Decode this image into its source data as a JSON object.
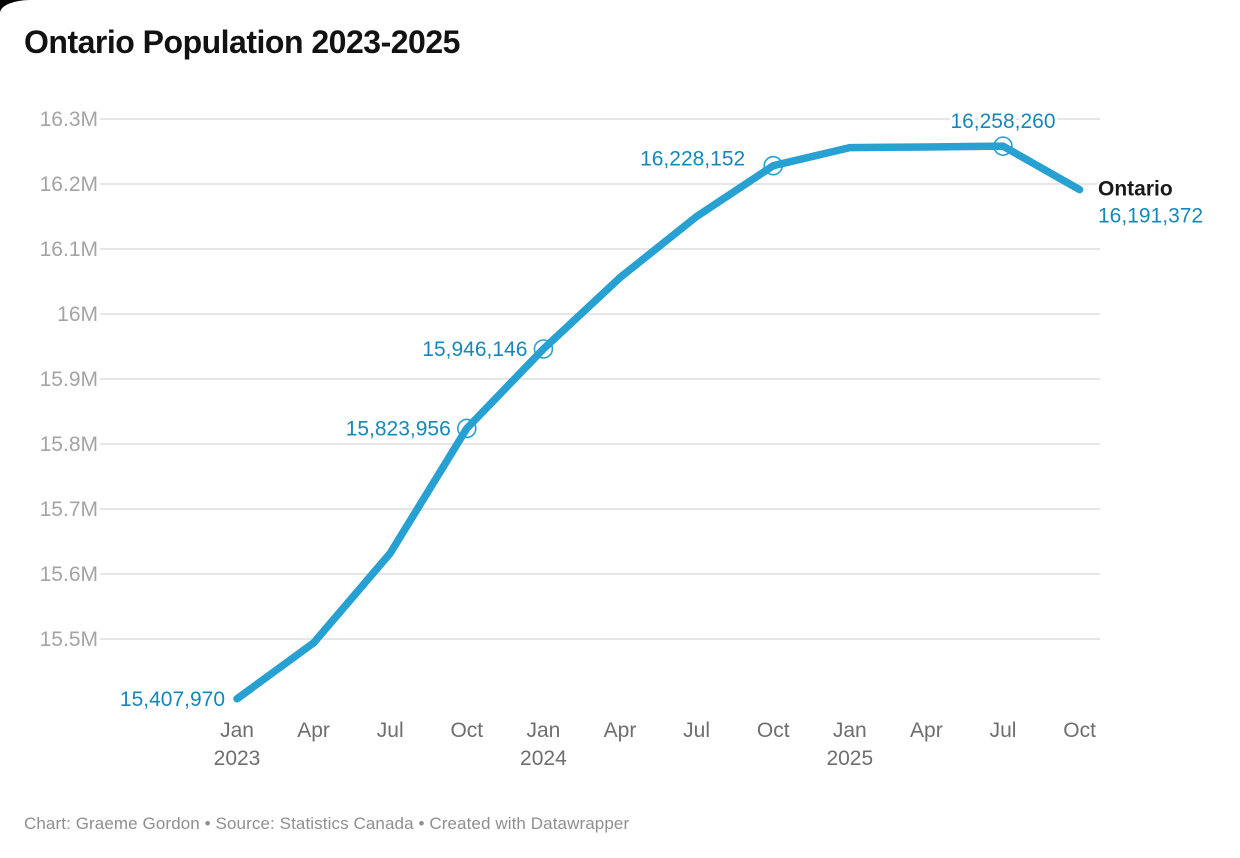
{
  "title": "Ontario Population 2023-2025",
  "footer": "Chart: Graeme Gordon • Source: Statistics Canada • Created with Datawrapper",
  "colors": {
    "line": "#27a0d2",
    "value_label": "#1787b9",
    "series_label": "#1a1a1a",
    "grid": "#e2e2e2",
    "y_tick_text": "#a4a4a4",
    "x_tick_text": "#6e6e6e",
    "title_text": "#121212",
    "footer_text": "#8f8f8f"
  },
  "chart_data": {
    "type": "line",
    "title": "Ontario Population 2023-2025",
    "xlabel": "",
    "ylabel": "",
    "series_name": "Ontario",
    "x": [
      "Jan 2023",
      "Apr 2023",
      "Jul 2023",
      "Oct 2023",
      "Jan 2024",
      "Apr 2024",
      "Jul 2024",
      "Oct 2024",
      "Jan 2025",
      "Apr 2025",
      "Jul 2025",
      "Oct 2025"
    ],
    "values": [
      15407970,
      15494000,
      15632000,
      15823956,
      15946146,
      16056000,
      16150000,
      16228152,
      16256000,
      16257000,
      16258260,
      16191372
    ],
    "labeled_points": [
      {
        "index": 0,
        "label": "15,407,970"
      },
      {
        "index": 3,
        "label": "15,823,956",
        "marker": true
      },
      {
        "index": 4,
        "label": "15,946,146",
        "marker": true
      },
      {
        "index": 7,
        "label": "16,228,152",
        "marker": true
      },
      {
        "index": 10,
        "label": "16,258,260",
        "marker": true
      },
      {
        "index": 11,
        "label": "16,191,372",
        "series_label": "Ontario"
      }
    ],
    "y_ticks": [
      {
        "label": "16.3M",
        "value": 16300000
      },
      {
        "label": "16.2M",
        "value": 16200000
      },
      {
        "label": "16.1M",
        "value": 16100000
      },
      {
        "label": "16M",
        "value": 16000000
      },
      {
        "label": "15.9M",
        "value": 15900000
      },
      {
        "label": "15.8M",
        "value": 15800000
      },
      {
        "label": "15.7M",
        "value": 15700000
      },
      {
        "label": "15.6M",
        "value": 15600000
      },
      {
        "label": "15.5M",
        "value": 15500000
      }
    ],
    "x_ticks": [
      {
        "month": "Jan",
        "year": "2023"
      },
      {
        "month": "Apr"
      },
      {
        "month": "Jul"
      },
      {
        "month": "Oct"
      },
      {
        "month": "Jan",
        "year": "2024"
      },
      {
        "month": "Apr"
      },
      {
        "month": "Jul"
      },
      {
        "month": "Oct"
      },
      {
        "month": "Jan",
        "year": "2025"
      },
      {
        "month": "Apr"
      },
      {
        "month": "Jul"
      },
      {
        "month": "Oct"
      }
    ],
    "ylim": [
      15390000,
      16330000
    ],
    "grid": true,
    "legend_position": "end-of-line"
  }
}
